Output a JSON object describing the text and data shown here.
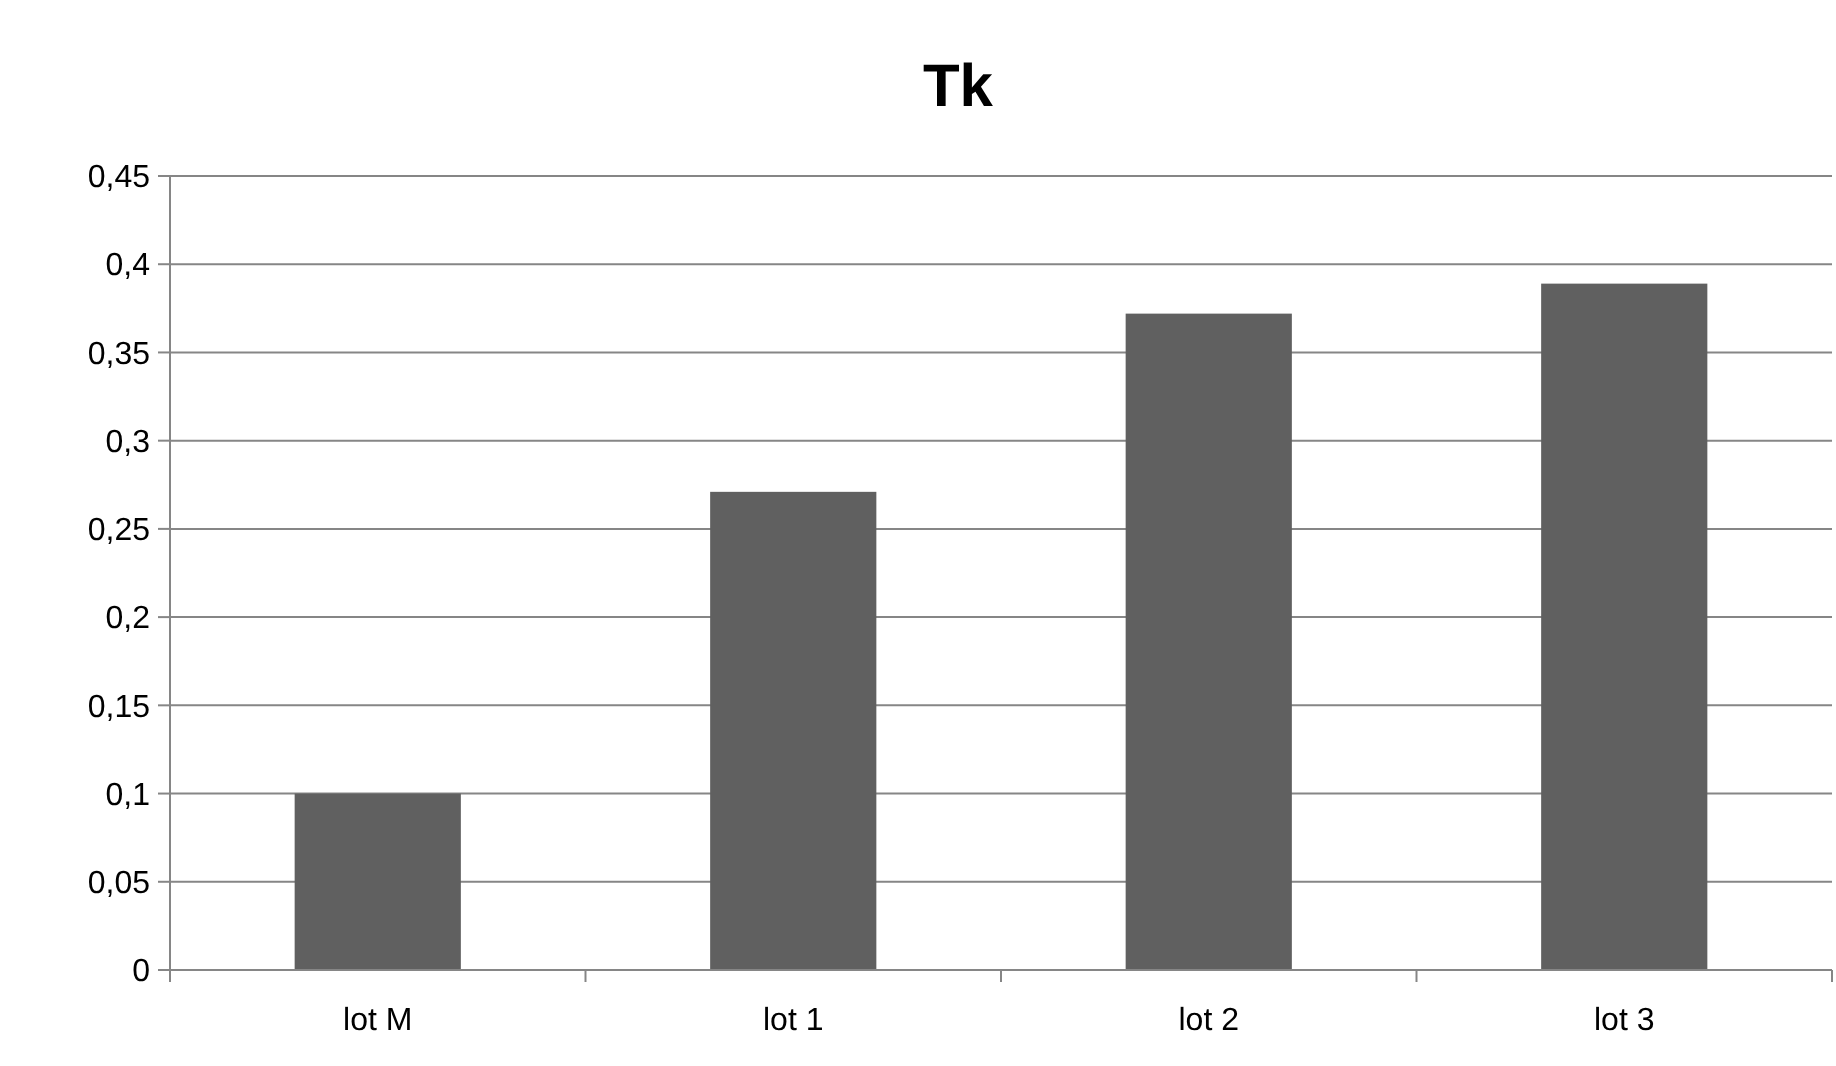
{
  "chart_data": {
    "type": "bar",
    "title": "Tk",
    "categories": [
      "lot M",
      "lot 1",
      "lot 2",
      "lot 3"
    ],
    "values": [
      0.1,
      0.271,
      0.372,
      0.389
    ],
    "color": "#606060",
    "ylim": [
      0,
      0.45
    ],
    "yticks": [
      {
        "value": 0,
        "label": "0"
      },
      {
        "value": 0.05,
        "label": "0,05"
      },
      {
        "value": 0.1,
        "label": "0,1"
      },
      {
        "value": 0.15,
        "label": "0,15"
      },
      {
        "value": 0.2,
        "label": "0,2"
      },
      {
        "value": 0.25,
        "label": "0,25"
      },
      {
        "value": 0.3,
        "label": "0,3"
      },
      {
        "value": 0.35,
        "label": "0,35"
      },
      {
        "value": 0.4,
        "label": "0,4"
      },
      {
        "value": 0.45,
        "label": "0,45"
      }
    ],
    "grid": "y"
  }
}
